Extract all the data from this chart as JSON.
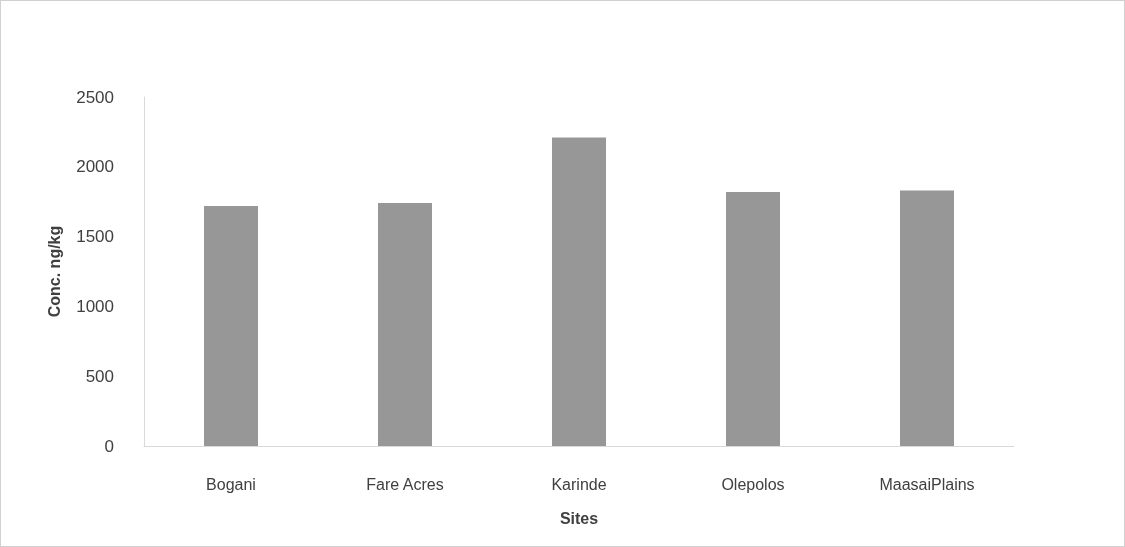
{
  "chart_data": {
    "type": "bar",
    "xlabel": "Sites",
    "ylabel": "Conc. ng/kg",
    "categories": [
      "Bogani",
      "Fare Acres",
      "Karinde",
      "Olepolos",
      "MaasaiPlains"
    ],
    "values": [
      1720,
      1740,
      2210,
      1820,
      1830
    ],
    "color": "#979797",
    "ylim": [
      0,
      2500
    ],
    "yticks": [
      0,
      500,
      1000,
      1500,
      2000,
      2500
    ],
    "grid": false
  }
}
